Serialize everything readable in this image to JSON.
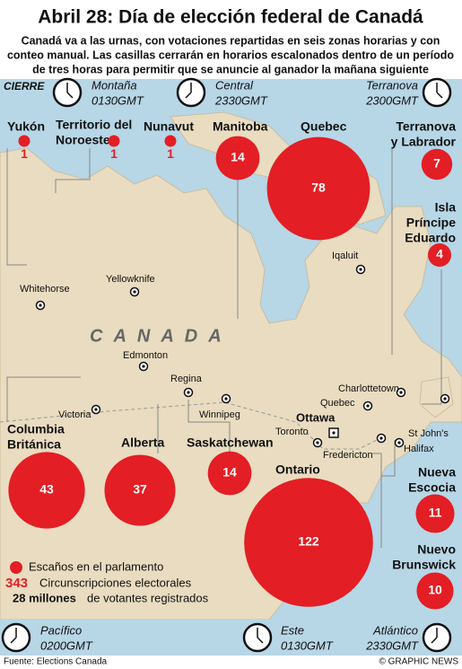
{
  "header": {
    "title": "Abril 28: Día de elección federal de Canadá",
    "subtitle": [
      "Canadá va a las urnas, con votaciones repartidas en seis zonas horarias y con",
      "conteo manual. Las casillas cerrarán en horarios escalonados dentro de un período",
      "de tres horas para permitir que se anuncie al ganador la mañana siguiente"
    ]
  },
  "closing_label": "CIERRE",
  "time_zones": [
    {
      "name": "Montaña",
      "time": "0130GMT"
    },
    {
      "name": "Central",
      "time": "2330GMT"
    },
    {
      "name": "Terranova",
      "time": "2300GMT"
    },
    {
      "name": "Pacífico",
      "time": "0200GMT"
    },
    {
      "name": "Este",
      "time": "0130GMT"
    },
    {
      "name": "Atlántico",
      "time": "2330GMT"
    }
  ],
  "country_label": "CANADA",
  "provinces": [
    {
      "name": [
        "Yukón"
      ],
      "seats": 1
    },
    {
      "name": [
        "Territorio del",
        "Noroeste"
      ],
      "seats": 1
    },
    {
      "name": [
        "Nunavut"
      ],
      "seats": 1
    },
    {
      "name": [
        "Manitoba"
      ],
      "seats": 14
    },
    {
      "name": [
        "Quebec"
      ],
      "seats": 78
    },
    {
      "name": [
        "Terranova",
        "y Labrador"
      ],
      "seats": 7
    },
    {
      "name": [
        "Isla",
        "Príncipe",
        "Eduardo"
      ],
      "seats": 4
    },
    {
      "name": [
        "Columbia",
        "Británica"
      ],
      "seats": 43
    },
    {
      "name": [
        "Alberta"
      ],
      "seats": 37
    },
    {
      "name": [
        "Saskatchewan"
      ],
      "seats": 14
    },
    {
      "name": [
        "Ontario"
      ],
      "seats": 122
    },
    {
      "name": [
        "Nueva",
        "Escocia"
      ],
      "seats": 11
    },
    {
      "name": [
        "Nuevo",
        "Brunswick"
      ],
      "seats": 10
    }
  ],
  "cities": [
    "Whitehorse",
    "Yellowknife",
    "Iqaluit",
    "Edmonton",
    "Regina",
    "Winnipeg",
    "Victoria",
    "Charlottetown",
    "Quebec",
    "Ottawa",
    "Toronto",
    "Fredericton",
    "Halifax",
    "St John's"
  ],
  "legend": {
    "seats_label": "Escaños en el parlamento",
    "ridings": 343,
    "ridings_label": "Circunscripciones electorales",
    "voters": "28 millones",
    "voters_label": "de votantes registrados"
  },
  "footer": {
    "source": "Fuente: Elections Canada",
    "credit": "© GRAPHIC NEWS"
  }
}
